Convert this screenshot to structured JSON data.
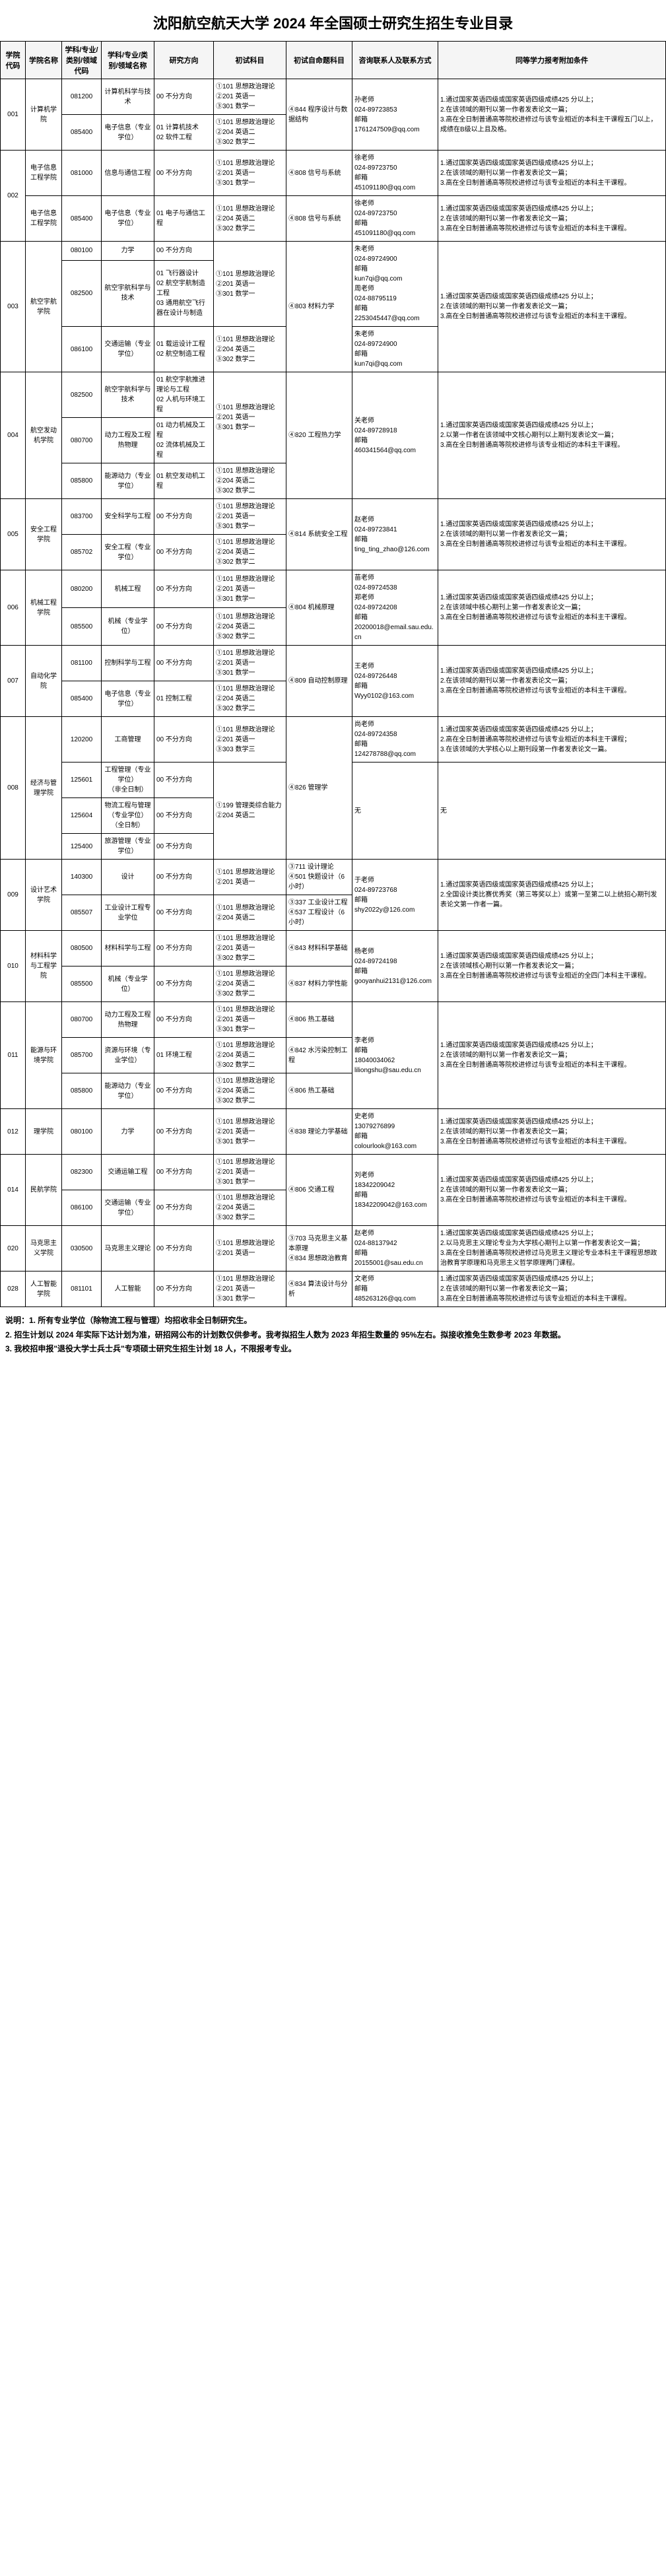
{
  "title": "沈阳航空航天大学 2024 年全国硕士研究生招生专业目录",
  "headers": [
    "学院代码",
    "学院名称",
    "学科/专业/类别/领域代码",
    "学科/专业/类别/领域名称",
    "研究方向",
    "初试科目",
    "初试自命题科目",
    "咨询联系人及联系方式",
    "同等学力报考附加条件"
  ],
  "rows": [
    {
      "c0": "001",
      "c1": "计算机学院",
      "c2": "081200",
      "c3": "计算机科学与技术",
      "c4": "00 不分方向",
      "c5": "①101 思想政治理论\n②201 英语一\n③301 数学一",
      "c6": "④844 程序设计与数据结构",
      "c7": "孙老师\n024-89723853\n邮箱\n1761247509@qq.com",
      "c8": "1.通过国家英语四级或国家英语四级成绩425 分以上；\n2.在该领域的期刊以第一作者发表论文一篇；\n3.高在全日制普通高等院校进修过与该专业相近的本科主干课程五门以上，成绩在B级以上且及格。"
    },
    {
      "c0": "",
      "c1": "",
      "c2": "085400",
      "c3": "电子信息（专业学位）",
      "c4": "01 计算机技术\n02 软件工程",
      "c5": "①101 思想政治理论\n②204 英语二\n③302 数学二",
      "c6": "",
      "c7": "",
      "c8": ""
    },
    {
      "c0": "002",
      "c1": "电子信息工程学院",
      "c2": "081000",
      "c3": "信息与通信工程",
      "c4": "00 不分方向",
      "c5": "①101 思想政治理论\n②201 英语一\n③301 数学一",
      "c6": "④808 信号与系统",
      "c7": "徐老师\n024-89723750\n邮箱\n451091180@qq.com",
      "c8": "1.通过国家英语四级或国家英语四级成绩425 分以上；\n2.在该领域的期刊以第一作者发表论文一篇；\n3.高在全日制普通高等院校进修过与该专业相近的本科主干课程。"
    },
    {
      "c0": "",
      "c1": "电子信息工程学院",
      "c2": "085400",
      "c3": "电子信息（专业学位）",
      "c4": "01 电子与通信工程",
      "c5": "①101 思想政治理论\n②204 英语二\n③302 数学二",
      "c6": "④808 信号与系统",
      "c7": "徐老师\n024-89723750\n邮箱\n451091180@qq.com",
      "c8": "1.通过国家英语四级或国家英语四级成绩425 分以上；\n2.在该领域的期刊以第一作者发表论文一篇；\n3.高在全日制普通高等院校进修过与该专业相近的本科主干课程。"
    },
    {
      "c0": "003",
      "c1": "航空宇航学院",
      "c2": "080100",
      "c3": "力学",
      "c4": "00 不分方向",
      "c5": "①101 思想政治理论\n②201 英语一\n③301 数学一",
      "c6": "④803 材料力学",
      "c7": "朱老师\n024-89724900\n邮箱\nkun7qi@qq.com\n周老师\n024-88795119\n邮箱\n2253045447@qq.com",
      "c8": "1.通过国家英语四级或国家英语四级成绩425 分以上；\n2.在该领域的期刊以第一作者发表论文一篇；\n3.高在全日制普通高等院校进修过与该专业相近的本科主干课程。"
    },
    {
      "c0": "",
      "c1": "",
      "c2": "082500",
      "c3": "航空宇航科学与技术",
      "c4": "01 飞行器设计\n02 航空宇航制造工程\n03 通用航空飞行器在设计与制造",
      "c5": "",
      "c6": "",
      "c7": "",
      "c8": ""
    },
    {
      "c0": "",
      "c1": "",
      "c2": "086100",
      "c3": "交通运输（专业学位）",
      "c4": "01 载运设计工程\n02 航空制造工程",
      "c5": "①101 思想政治理论\n②204 英语二\n③302 数学二",
      "c6": "",
      "c7": "朱老师\n024-89724900\n邮箱\nkun7qi@qq.com",
      "c8": ""
    },
    {
      "c0": "004",
      "c1": "航空发动机学院",
      "c2": "082500",
      "c3": "航空宇航科学与技术",
      "c4": "01 航空宇航推进理论与工程\n02 人机与环境工程",
      "c5": "①101 思想政治理论\n②201 英语一\n③301 数学一",
      "c6": "④820 工程热力学",
      "c7": "关老师\n024-89728918\n邮箱\n460341564@qq.com",
      "c8": "1.通过国家英语四级或国家英语四级成绩425 分以上；\n2.以第一作者在该领域中文核心期刊以上期刊发表论文一篇；\n3.高在全日制普通高等院校进修与该专业相近的本科主干课程。"
    },
    {
      "c0": "",
      "c1": "",
      "c2": "080700",
      "c3": "动力工程及工程热物理",
      "c4": "01 动力机械及工程\n02 流体机械及工程",
      "c5": "",
      "c6": "",
      "c7": "",
      "c8": ""
    },
    {
      "c0": "",
      "c1": "",
      "c2": "085800",
      "c3": "能源动力（专业学位）",
      "c4": "01 航空发动机工程",
      "c5": "①101 思想政治理论\n②204 英语二\n③302 数学二",
      "c6": "",
      "c7": "",
      "c8": ""
    },
    {
      "c0": "005",
      "c1": "安全工程学院",
      "c2": "083700",
      "c3": "安全科学与工程",
      "c4": "00 不分方向",
      "c5": "①101 思想政治理论\n②201 英语一\n③301 数学一",
      "c6": "④814 系统安全工程",
      "c7": "赵老师\n024-89723841\n邮箱\nting_ting_zhao@126.com",
      "c8": "1.通过国家英语四级或国家英语四级成绩425 分以上；\n2.在该领域的期刊以第一作者发表论文一篇；\n3.高在全日制普通高等院校进修过与该专业相近的本科主干课程。"
    },
    {
      "c0": "",
      "c1": "",
      "c2": "085702",
      "c3": "安全工程（专业学位）",
      "c4": "00 不分方向",
      "c5": "①101 思想政治理论\n②204 英语二\n③302 数学二",
      "c6": "",
      "c7": "",
      "c8": ""
    },
    {
      "c0": "006",
      "c1": "机械工程学院",
      "c2": "080200",
      "c3": "机械工程",
      "c4": "00 不分方向",
      "c5": "①101 思想政治理论\n②201 英语一\n③301 数学一",
      "c6": "④804 机械原理",
      "c7": "苗老师\n024-89724538\n郑老师\n024-89724208\n邮箱\n20200018@email.sau.edu.cn",
      "c8": "1.通过国家英语四级或国家英语四级成绩425 分以上；\n2.在该领域中核心期刊上第一作者发表论文一篇；\n3.高在全日制普通高等院校进修过与该专业相近的本科主干课程。"
    },
    {
      "c0": "",
      "c1": "",
      "c2": "085500",
      "c3": "机械（专业学位）",
      "c4": "00 不分方向",
      "c5": "①101 思想政治理论\n②204 英语二\n③302 数学二",
      "c6": "",
      "c7": "",
      "c8": ""
    },
    {
      "c0": "007",
      "c1": "自动化学院",
      "c2": "081100",
      "c3": "控制科学与工程",
      "c4": "00 不分方向",
      "c5": "①101 思想政治理论\n②201 英语一\n③301 数学一",
      "c6": "④809 自动控制原理",
      "c7": "王老师\n024-89726448\n邮箱\nWyy0102@163.com",
      "c8": "1.通过国家英语四级或国家英语四级成绩425 分以上；\n2.在该领域的期刊以第一作者发表论文一篇；\n3.高在全日制普通高等院校进修过与该专业相近的本科主干课程。"
    },
    {
      "c0": "",
      "c1": "",
      "c2": "085400",
      "c3": "电子信息（专业学位）",
      "c4": "01 控制工程",
      "c5": "①101 思想政治理论\n②204 英语二\n③302 数学二",
      "c6": "",
      "c7": "",
      "c8": ""
    },
    {
      "c0": "008",
      "c1": "经济与管理学院",
      "c2": "120200",
      "c3": "工商管理",
      "c4": "00 不分方向",
      "c5": "①101 思想政治理论\n②201 英语一\n③303 数学三",
      "c6": "④826 管理学",
      "c7": "尚老师\n024-89724358\n邮箱\n124278788@qq.com",
      "c8": "1.通过国家英语四级或国家英语四级成绩425 分以上；\n2.高在全日制普通高等院校进修过与该专业相近的本科主干课程；\n3.在该领域的大学核心以上期刊段第一作者发表论文一篇。"
    },
    {
      "c0": "",
      "c1": "",
      "c2": "125601",
      "c3": "工程管理（专业学位）\n（非全日制）",
      "c4": "00 不分方向",
      "c5": "①199 管理类综合能力\n②204 英语二",
      "c6": "",
      "c7": "无",
      "c8": "无"
    },
    {
      "c0": "",
      "c1": "",
      "c2": "125604",
      "c3": "物流工程与管理（专业学位）\n（全日制）",
      "c4": "00 不分方向",
      "c5": "",
      "c6": "",
      "c7": "",
      "c8": ""
    },
    {
      "c0": "",
      "c1": "",
      "c2": "125400",
      "c3": "旅游管理（专业学位）",
      "c4": "00 不分方向",
      "c5": "",
      "c6": "",
      "c7": "",
      "c8": ""
    },
    {
      "c0": "009",
      "c1": "设计艺术学院",
      "c2": "140300",
      "c3": "设计",
      "c4": "00 不分方向",
      "c5": "①101 思想政治理论\n②201 英语一",
      "c6": "③711 设计理论\n④501 快题设计（6 小时）",
      "c7": "于老师\n024-89723768\n邮箱\nshy2022y@126.com",
      "c8": "1.通过国家英语四级或国家英语四级成绩425 分以上；\n2.全国设计类比赛优秀奖（第三等奖以上）或第一至第二以上统招心期刊发表论文第一作者一篇。"
    },
    {
      "c0": "",
      "c1": "",
      "c2": "085507",
      "c3": "工业设计工程专业学位",
      "c4": "00 不分方向",
      "c5": "①101 思想政治理论\n②204 英语二",
      "c6": "③337 工业设计工程\n④537 工程设计（6 小时）",
      "c7": "",
      "c8": ""
    },
    {
      "c0": "010",
      "c1": "材料科学与工程学院",
      "c2": "080500",
      "c3": "材料科学与工程",
      "c4": "00 不分方向",
      "c5": "①101 思想政治理论\n②201 英语一\n③302 数学二",
      "c6": "④843 材料科学基础",
      "c7": "杨老师\n024-89724198\n邮箱\ngooyanhui2131@126.com",
      "c8": "1.通过国家英语四级或国家英语四级成绩425 分以上；\n2.在该领域核心期刊以第一作者发表论文一篇；\n3.高在全日制普通高等院校进修过与该专业相近的全四门本科主干课程。"
    },
    {
      "c0": "",
      "c1": "",
      "c2": "085500",
      "c3": "机械（专业学位）",
      "c4": "00 不分方向",
      "c5": "①101 思想政治理论\n②204 英语二\n③302 数学二",
      "c6": "④837 材料力学性能",
      "c7": "",
      "c8": ""
    },
    {
      "c0": "011",
      "c1": "能源与环境学院",
      "c2": "080700",
      "c3": "动力工程及工程热物理",
      "c4": "00 不分方向",
      "c5": "①101 思想政治理论\n②201 英语一\n③301 数学一",
      "c6": "④806 热工基础",
      "c7": "李老师\n邮箱\n18040034062\nliliongshu@sau.edu.cn",
      "c8": "1.通过国家英语四级或国家英语四级成绩425 分以上；\n2.在该领域的期刊以第一作者发表论文一篇；\n3.高在全日制普通高等院校进修过与该专业相近的本科主干课程。"
    },
    {
      "c0": "",
      "c1": "",
      "c2": "085700",
      "c3": "资源与环境（专业学位）",
      "c4": "01 环境工程",
      "c5": "①101 思想政治理论\n②204 英语二\n③302 数学二",
      "c6": "④842 水污染控制工程",
      "c7": "",
      "c8": ""
    },
    {
      "c0": "",
      "c1": "",
      "c2": "085800",
      "c3": "能源动力（专业学位）",
      "c4": "00 不分方向",
      "c5": "①101 思想政治理论\n②204 英语二\n③302 数学二",
      "c6": "④806 热工基础",
      "c7": "",
      "c8": ""
    },
    {
      "c0": "012",
      "c1": "理学院",
      "c2": "080100",
      "c3": "力学",
      "c4": "00 不分方向",
      "c5": "①101 思想政治理论\n②201 英语一\n③301 数学一",
      "c6": "④838 理论力学基础",
      "c7": "史老师\n13079276899\n邮箱\ncolourlook@163.com",
      "c8": "1.通过国家英语四级或国家英语四级成绩425 分以上；\n2.在该领域的期刊以第一作者发表论文一篇；\n3.高在全日制普通高等院校进修过与该专业相近的本科主干课程。"
    },
    {
      "c0": "014",
      "c1": "民航学院",
      "c2": "082300",
      "c3": "交通运输工程",
      "c4": "00 不分方向",
      "c5": "①101 思想政治理论\n②201 英语一\n③301 数学一",
      "c6": "④806 交通工程",
      "c7": "刘老师\n18342209042\n邮箱\n18342209042@163.com",
      "c8": "1.通过国家英语四级或国家英语四级成绩425 分以上；\n2.在该领域的期刊以第一作者发表论文一篇；\n3.高在全日制普通高等院校进修过与该专业相近的本科主干课程。"
    },
    {
      "c0": "",
      "c1": "",
      "c2": "086100",
      "c3": "交通运输（专业学位）",
      "c4": "00 不分方向",
      "c5": "①101 思想政治理论\n②204 英语二\n③302 数学二",
      "c6": "",
      "c7": "",
      "c8": ""
    },
    {
      "c0": "020",
      "c1": "马克思主义学院",
      "c2": "030500",
      "c3": "马克思主义理论",
      "c4": "00 不分方向",
      "c5": "①101 思想政治理论\n②201 英语一",
      "c6": "③703 马克思主义基本原理\n④834 思想政治教育",
      "c7": "赵老师\n024-88137942\n邮箱\n20155001@sau.edu.cn",
      "c8": "1.通过国家英语四级或国家英语四级成绩425 分以上；\n2.以马克思主义理论专业为大学核心期刊上以第一作者发表论文一篇；\n3.高在全日制普通高等院校进修过马克思主义理论专业本科主干课程思想政治教育学原理和马克思主义哲学原理两门课程。"
    },
    {
      "c0": "028",
      "c1": "人工智能学院",
      "c2": "081101",
      "c3": "人工智能",
      "c4": "00 不分方向",
      "c5": "①101 思想政治理论\n②201 英语一\n③301 数学一",
      "c6": "④834 算法设计与分析",
      "c7": "文老师\n邮箱\n485263126@qq.com",
      "c8": "1.通过国家英语四级或国家英语四级成绩425 分以上；\n2.在该领域的期刊以第一作者发表论文一篇；\n3.高在全日制普通高等院校进修过与该专业相近的本科主干课程。"
    }
  ],
  "notes": [
    "说明：1. 所有专业学位（除物流工程与管理）均招收非全日制研究生。",
    "2. 招生计划以 2024 年实际下达计划为准，研招网公布的计划数仅供参考。我考拟招生人数为 2023 年招生数量的 95%左右。拟接收推免生数参考 2023 年数据。",
    "3. 我校招申报\"退役大学士兵士兵\"专项硕士研究生招生计划 18 人，不限报考专业。"
  ]
}
